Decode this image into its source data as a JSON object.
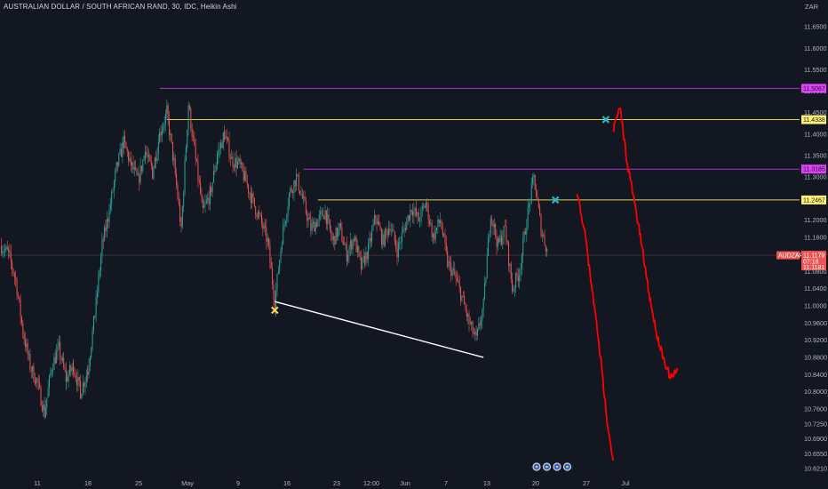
{
  "header": {
    "title": "AUSTRALIAN DOLLAR / SOUTH AFRICAN RAND, 30, IDC, Heikin Ashi"
  },
  "chart_data": {
    "type": "candlestick",
    "symbol": "AUDZAR",
    "currency_label": "ZAR",
    "ylim": [
      10.6025,
      11.6875
    ],
    "y_ticks": [
      "11.6500",
      "11.6000",
      "11.5500",
      "11.5000",
      "11.4500",
      "11.4000",
      "11.3500",
      "11.3000",
      "11.2500",
      "11.2000",
      "11.1600",
      "11.1200",
      "11.0800",
      "11.0400",
      "11.0000",
      "10.9600",
      "10.9200",
      "10.8800",
      "10.8400",
      "10.8000",
      "10.7600",
      "10.7250",
      "10.6900",
      "10.6550",
      "10.6210"
    ],
    "x_ticks": [
      "11",
      "18",
      "25",
      "May",
      "9",
      "16",
      "23",
      "12:00",
      "Jun",
      "7",
      "13",
      "20",
      "27",
      "Jul"
    ],
    "levels": [
      {
        "label": "11.5067",
        "value": 11.5067,
        "color": "#b131d4",
        "tag_color": "#e040fb",
        "tag_text_color": "#131722",
        "from": "Apr 28"
      },
      {
        "label": "11.4338",
        "value": 11.4338,
        "color": "#ddd35a",
        "tag_color": "#fff176",
        "tag_text_color": "#131722",
        "from": "Apr 29"
      },
      {
        "label": "11.3185",
        "value": 11.3185,
        "color": "#b131d4",
        "tag_color": "#e040fb",
        "tag_text_color": "#131722",
        "from": "May 18"
      },
      {
        "label": "11.2467",
        "value": 11.2467,
        "color": "#ddd35a",
        "tag_color": "#fff176",
        "tag_text_color": "#131722",
        "from": "May 20"
      }
    ],
    "current_price": {
      "symbol": "AUDZAR",
      "value": 11.1179,
      "countdown": "07:18",
      "previous": 11.1181,
      "color": "#f05350"
    },
    "trendline": {
      "from": [
        "May 14",
        11.01
      ],
      "to": [
        "Jun 12",
        10.88
      ],
      "color": "#ffffff"
    },
    "markers": [
      {
        "date": "May 14",
        "value": 10.99,
        "color": "#f5d65c"
      },
      {
        "date": "Jun 22",
        "value": 11.2467,
        "color": "#26b8c9"
      },
      {
        "date": "Jun 29",
        "value": 11.4338,
        "color": "#26b8c9"
      }
    ],
    "projections": [
      {
        "color": "#ff0000",
        "points": [
          [
            "Jun 25",
            11.26
          ],
          [
            "Jun 26",
            11.18
          ],
          [
            "Jun 27",
            11.05
          ],
          [
            "Jun 28",
            10.92
          ],
          [
            "Jun 29",
            10.76
          ],
          [
            "Jun 30",
            10.64
          ]
        ]
      },
      {
        "color": "#ff0000",
        "points": [
          [
            "Jun 30",
            11.41
          ],
          [
            "Jul 1",
            11.46
          ],
          [
            "Jul 2",
            11.33
          ],
          [
            "Jul 3",
            11.24
          ],
          [
            "Jul 4",
            11.14
          ],
          [
            "Jul 5",
            11.03
          ],
          [
            "Jul 6",
            10.94
          ],
          [
            "Jul 7",
            10.88
          ],
          [
            "Jul 8",
            10.83
          ],
          [
            "Jul 9",
            10.85
          ]
        ]
      }
    ],
    "series": {
      "name": "AUDZAR",
      "up_color": "#26a69a",
      "down_color": "#ef5350",
      "points": [
        [
          "Apr 6",
          11.14
        ],
        [
          "Apr 7",
          11.12
        ],
        [
          "Apr 8",
          11.06
        ],
        [
          "Apr 9",
          10.94
        ],
        [
          "Apr 10",
          10.86
        ],
        [
          "Apr 11",
          10.82
        ],
        [
          "Apr 12",
          10.75
        ],
        [
          "Apr 13",
          10.86
        ],
        [
          "Apr 14",
          10.9
        ],
        [
          "Apr 15",
          10.83
        ],
        [
          "Apr 16",
          10.86
        ],
        [
          "Apr 17",
          10.8
        ],
        [
          "Apr 18",
          10.85
        ],
        [
          "Apr 19",
          10.98
        ],
        [
          "Apr 20",
          11.14
        ],
        [
          "Apr 21",
          11.22
        ],
        [
          "Apr 22",
          11.32
        ],
        [
          "Apr 23",
          11.38
        ],
        [
          "Apr 24",
          11.33
        ],
        [
          "Apr 25",
          11.29
        ],
        [
          "Apr 26",
          11.36
        ],
        [
          "Apr 27",
          11.31
        ],
        [
          "Apr 28",
          11.4
        ],
        [
          "Apr 29",
          11.45
        ],
        [
          "Apr 30",
          11.33
        ],
        [
          "May 1",
          11.18
        ],
        [
          "May 2",
          11.47
        ],
        [
          "May 3",
          11.34
        ],
        [
          "May 4",
          11.22
        ],
        [
          "May 5",
          11.26
        ],
        [
          "May 6",
          11.35
        ],
        [
          "May 7",
          11.4
        ],
        [
          "May 8",
          11.34
        ],
        [
          "May 9",
          11.33
        ],
        [
          "May 10",
          11.29
        ],
        [
          "May 11",
          11.24
        ],
        [
          "May 12",
          11.2
        ],
        [
          "May 13",
          11.15
        ],
        [
          "May 14",
          11.01
        ],
        [
          "May 15",
          11.16
        ],
        [
          "May 16",
          11.26
        ],
        [
          "May 17",
          11.3
        ],
        [
          "May 18",
          11.24
        ],
        [
          "May 19",
          11.18
        ],
        [
          "May 20",
          11.2
        ],
        [
          "May 21",
          11.22
        ],
        [
          "May 22",
          11.15
        ],
        [
          "May 23",
          11.18
        ],
        [
          "May 24",
          11.12
        ],
        [
          "May 25",
          11.16
        ],
        [
          "May 26",
          11.09
        ],
        [
          "May 27",
          11.13
        ],
        [
          "May 28",
          11.21
        ],
        [
          "May 29",
          11.15
        ],
        [
          "May 30",
          11.19
        ],
        [
          "May 31",
          11.13
        ],
        [
          "Jun 1",
          11.18
        ],
        [
          "Jun 2",
          11.23
        ],
        [
          "Jun 3",
          11.2
        ],
        [
          "Jun 4",
          11.24
        ],
        [
          "Jun 5",
          11.16
        ],
        [
          "Jun 6",
          11.2
        ],
        [
          "Jun 7",
          11.1
        ],
        [
          "Jun 8",
          11.07
        ],
        [
          "Jun 9",
          11.02
        ],
        [
          "Jun 10",
          10.96
        ],
        [
          "Jun 11",
          10.92
        ],
        [
          "Jun 12",
          11.0
        ],
        [
          "Jun 13",
          11.22
        ],
        [
          "Jun 14",
          11.14
        ],
        [
          "Jun 15",
          11.18
        ],
        [
          "Jun 16",
          11.04
        ],
        [
          "Jun 17",
          11.08
        ],
        [
          "Jun 18",
          11.2
        ],
        [
          "Jun 19",
          11.3
        ],
        [
          "Jun 20",
          11.18
        ],
        [
          "Jun 21",
          11.12
        ]
      ]
    },
    "event_icons": 4,
    "grid": false
  }
}
